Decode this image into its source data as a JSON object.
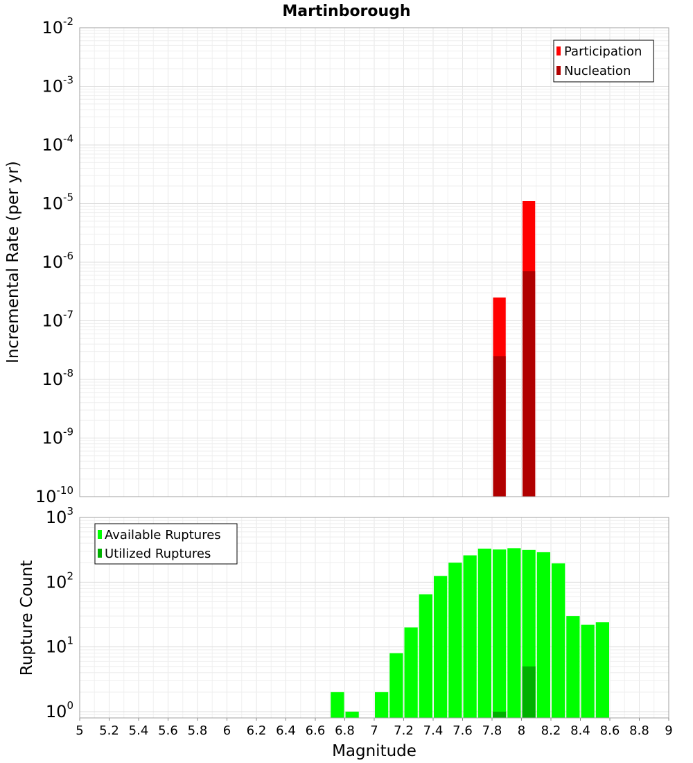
{
  "chart_data": [
    {
      "type": "bar",
      "title": "Martinborough",
      "ylabel": "Incremental Rate (per yr)",
      "xlabel": "",
      "yscale": "log",
      "ylim": [
        1e-10,
        0.01
      ],
      "ytick_exponents": [
        "-2",
        "-3",
        "-4",
        "-5",
        "-6",
        "-7",
        "-8",
        "-9",
        "-10"
      ],
      "ytick_base": "10",
      "grid": true,
      "legend_position": "top-right",
      "series": [
        {
          "name": "Participation",
          "color": "#ff0000",
          "x": [
            7.85,
            8.05
          ],
          "values": [
            2.5e-07,
            1.1e-05
          ]
        },
        {
          "name": "Nucleation",
          "color": "#b00000",
          "x": [
            7.85,
            8.05
          ],
          "values": [
            2.5e-08,
            7e-07
          ]
        }
      ]
    },
    {
      "type": "bar",
      "title": "",
      "ylabel": "Rupture Count",
      "xlabel": "Magnitude",
      "yscale": "log",
      "ylim": [
        0.8,
        1000
      ],
      "ytick_exponents": [
        "3",
        "2",
        "1",
        "0"
      ],
      "ytick_base": "10",
      "grid": true,
      "legend_position": "top-left",
      "xlim": [
        5,
        9
      ],
      "xticks": [
        "5",
        "5.2",
        "5.4",
        "5.6",
        "5.8",
        "6",
        "6.2",
        "6.4",
        "6.6",
        "6.8",
        "7",
        "7.2",
        "7.4",
        "7.6",
        "7.8",
        "8",
        "8.2",
        "8.4",
        "8.6",
        "8.8",
        "9"
      ],
      "series": [
        {
          "name": "Available Ruptures",
          "color": "#00ff00",
          "x": [
            6.75,
            6.85,
            7.05,
            7.15,
            7.25,
            7.35,
            7.45,
            7.55,
            7.65,
            7.75,
            7.85,
            7.95,
            8.05,
            8.15,
            8.25,
            8.35,
            8.45,
            8.55
          ],
          "values": [
            2,
            1,
            2,
            8,
            20,
            65,
            125,
            200,
            260,
            330,
            320,
            335,
            315,
            290,
            195,
            30,
            22,
            24
          ]
        },
        {
          "name": "Utilized Ruptures",
          "color": "#00b000",
          "x": [
            7.85,
            8.05
          ],
          "values": [
            1,
            5
          ]
        }
      ]
    }
  ]
}
